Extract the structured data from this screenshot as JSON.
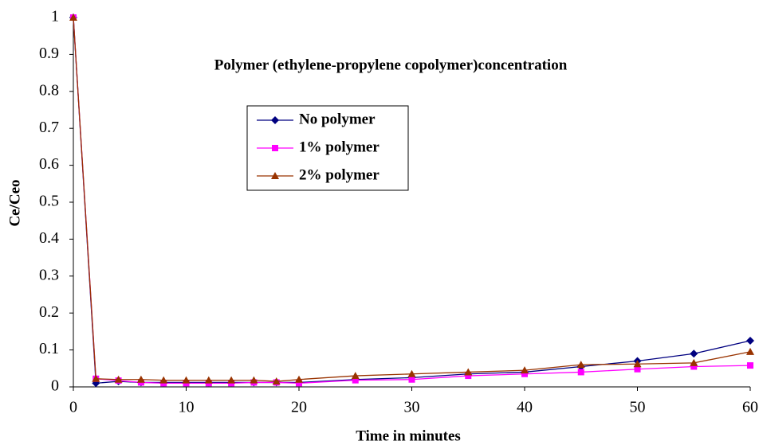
{
  "chart_data": {
    "type": "line",
    "title": "Polymer (ethylene-propylene copolymer)concentration",
    "x_label": "Time in minutes",
    "y_label": "Ce/Ceo",
    "x": [
      0,
      2,
      4,
      6,
      8,
      10,
      12,
      14,
      16,
      18,
      20,
      25,
      30,
      35,
      40,
      45,
      50,
      55,
      60
    ],
    "series": [
      {
        "name": "No polymer",
        "color": "#000080",
        "marker": "diamond",
        "values": [
          1,
          0.01,
          0.015,
          0.012,
          0.012,
          0.012,
          0.012,
          0.012,
          0.012,
          0.012,
          0.012,
          0.02,
          0.025,
          0.035,
          0.04,
          0.055,
          0.07,
          0.09,
          0.125
        ]
      },
      {
        "name": "1% polymer",
        "color": "#ff00ff",
        "marker": "square",
        "values": [
          1,
          0.022,
          0.017,
          0.012,
          0.01,
          0.01,
          0.01,
          0.01,
          0.012,
          0.012,
          0.01,
          0.018,
          0.02,
          0.03,
          0.035,
          0.04,
          0.048,
          0.055,
          0.058
        ]
      },
      {
        "name": "2% polymer",
        "color": "#993300",
        "marker": "triangle",
        "values": [
          1,
          0.022,
          0.02,
          0.02,
          0.018,
          0.018,
          0.018,
          0.018,
          0.018,
          0.015,
          0.02,
          0.03,
          0.035,
          0.04,
          0.045,
          0.06,
          0.062,
          0.065,
          0.095
        ]
      }
    ],
    "xlim": [
      0,
      60
    ],
    "xticks": [
      0,
      10,
      20,
      30,
      40,
      50,
      60
    ],
    "ylim": [
      0,
      1
    ],
    "yticks": [
      0,
      0.1,
      0.2,
      0.3,
      0.4,
      0.5,
      0.6,
      0.7,
      0.8,
      0.9,
      1
    ],
    "grid": false
  }
}
